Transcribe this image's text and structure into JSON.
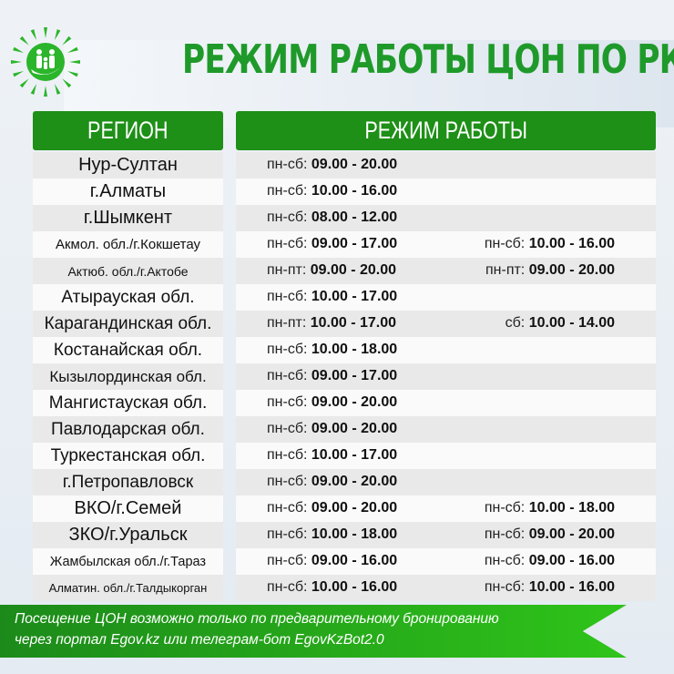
{
  "header": {
    "title": "РЕЖИМ РАБОТЫ ЦОН ПО РК",
    "logo_icon": "family-sun-logo"
  },
  "colors": {
    "green": "#1e8f17",
    "title_green": "#1f9a2a"
  },
  "table": {
    "columns": [
      "РЕГИОН",
      "РЕЖИМ РАБОТЫ"
    ],
    "rows": [
      {
        "region": "Нур-Султан",
        "size": 20,
        "s1p": "пн-сб: ",
        "s1t": "09.00 - 20.00"
      },
      {
        "region": "г.Алматы",
        "size": 20,
        "s1p": "пн-сб: ",
        "s1t": "10.00 - 16.00"
      },
      {
        "region": "г.Шымкент",
        "size": 20,
        "s1p": "пн-сб: ",
        "s1t": "08.00 - 12.00"
      },
      {
        "region": "Акмол. обл./г.Кокшетау",
        "size": 15,
        "s1p": "пн-сб: ",
        "s1t": "09.00 - 17.00",
        "s2p": "пн-сб: ",
        "s2t": "10.00 - 16.00"
      },
      {
        "region": "Актюб. обл./г.Актобе",
        "size": 14,
        "s1p": "пн-пт: ",
        "s1t": "09.00 - 20.00",
        "s2p": "пн-пт: ",
        "s2t": "09.00 - 20.00"
      },
      {
        "region": "Атырауская обл.",
        "size": 19,
        "s1p": "пн-сб: ",
        "s1t": "10.00 - 17.00"
      },
      {
        "region": "Карагандинская обл.",
        "size": 19,
        "s1p": "пн-пт: ",
        "s1t": "10.00 - 17.00",
        "s2p": "сб: ",
        "s2t": "10.00 - 14.00"
      },
      {
        "region": "Костанайская обл.",
        "size": 19,
        "s1p": "пн-сб: ",
        "s1t": "10.00 - 18.00"
      },
      {
        "region": "Кызылординская обл.",
        "size": 17,
        "s1p": "пн-сб: ",
        "s1t": "09.00 - 17.00"
      },
      {
        "region": "Мангистауская обл.",
        "size": 19,
        "s1p": "пн-сб: ",
        "s1t": "09.00 - 20.00"
      },
      {
        "region": "Павлодарская обл.",
        "size": 19,
        "s1p": "пн-сб: ",
        "s1t": "09.00 - 20.00"
      },
      {
        "region": "Туркестанская обл.",
        "size": 19,
        "s1p": "пн-сб: ",
        "s1t": "10.00 - 17.00"
      },
      {
        "region": "г.Петропавловск",
        "size": 19,
        "s1p": "пн-сб: ",
        "s1t": "09.00 - 20.00"
      },
      {
        "region": "ВКО/г.Семей",
        "size": 20,
        "s1p": "пн-сб: ",
        "s1t": "09.00 - 20.00",
        "s2p": "пн-сб: ",
        "s2t": "10.00 - 18.00"
      },
      {
        "region": "ЗКО/г.Уральск",
        "size": 20,
        "s1p": "пн-сб: ",
        "s1t": "10.00 - 18.00",
        "s2p": "пн-сб: ",
        "s2t": "09.00 - 20.00"
      },
      {
        "region": "Жамбылская обл./г.Тараз",
        "size": 14.5,
        "s1p": "пн-сб: ",
        "s1t": "09.00 - 16.00",
        "s2p": "пн-сб: ",
        "s2t": "09.00 - 16.00"
      },
      {
        "region": "Алматин. обл./г.Талдыкорган",
        "size": 13,
        "s1p": "пн-сб: ",
        "s1t": "10.00 - 16.00",
        "s2p": "пн-сб: ",
        "s2t": "10.00 - 16.00"
      }
    ]
  },
  "footer": {
    "line1": "Посещение ЦОН возможно только по предварительному бронированию",
    "line2": "через портал Egov.kz или телеграм-бот EgovKzBot2.0"
  }
}
